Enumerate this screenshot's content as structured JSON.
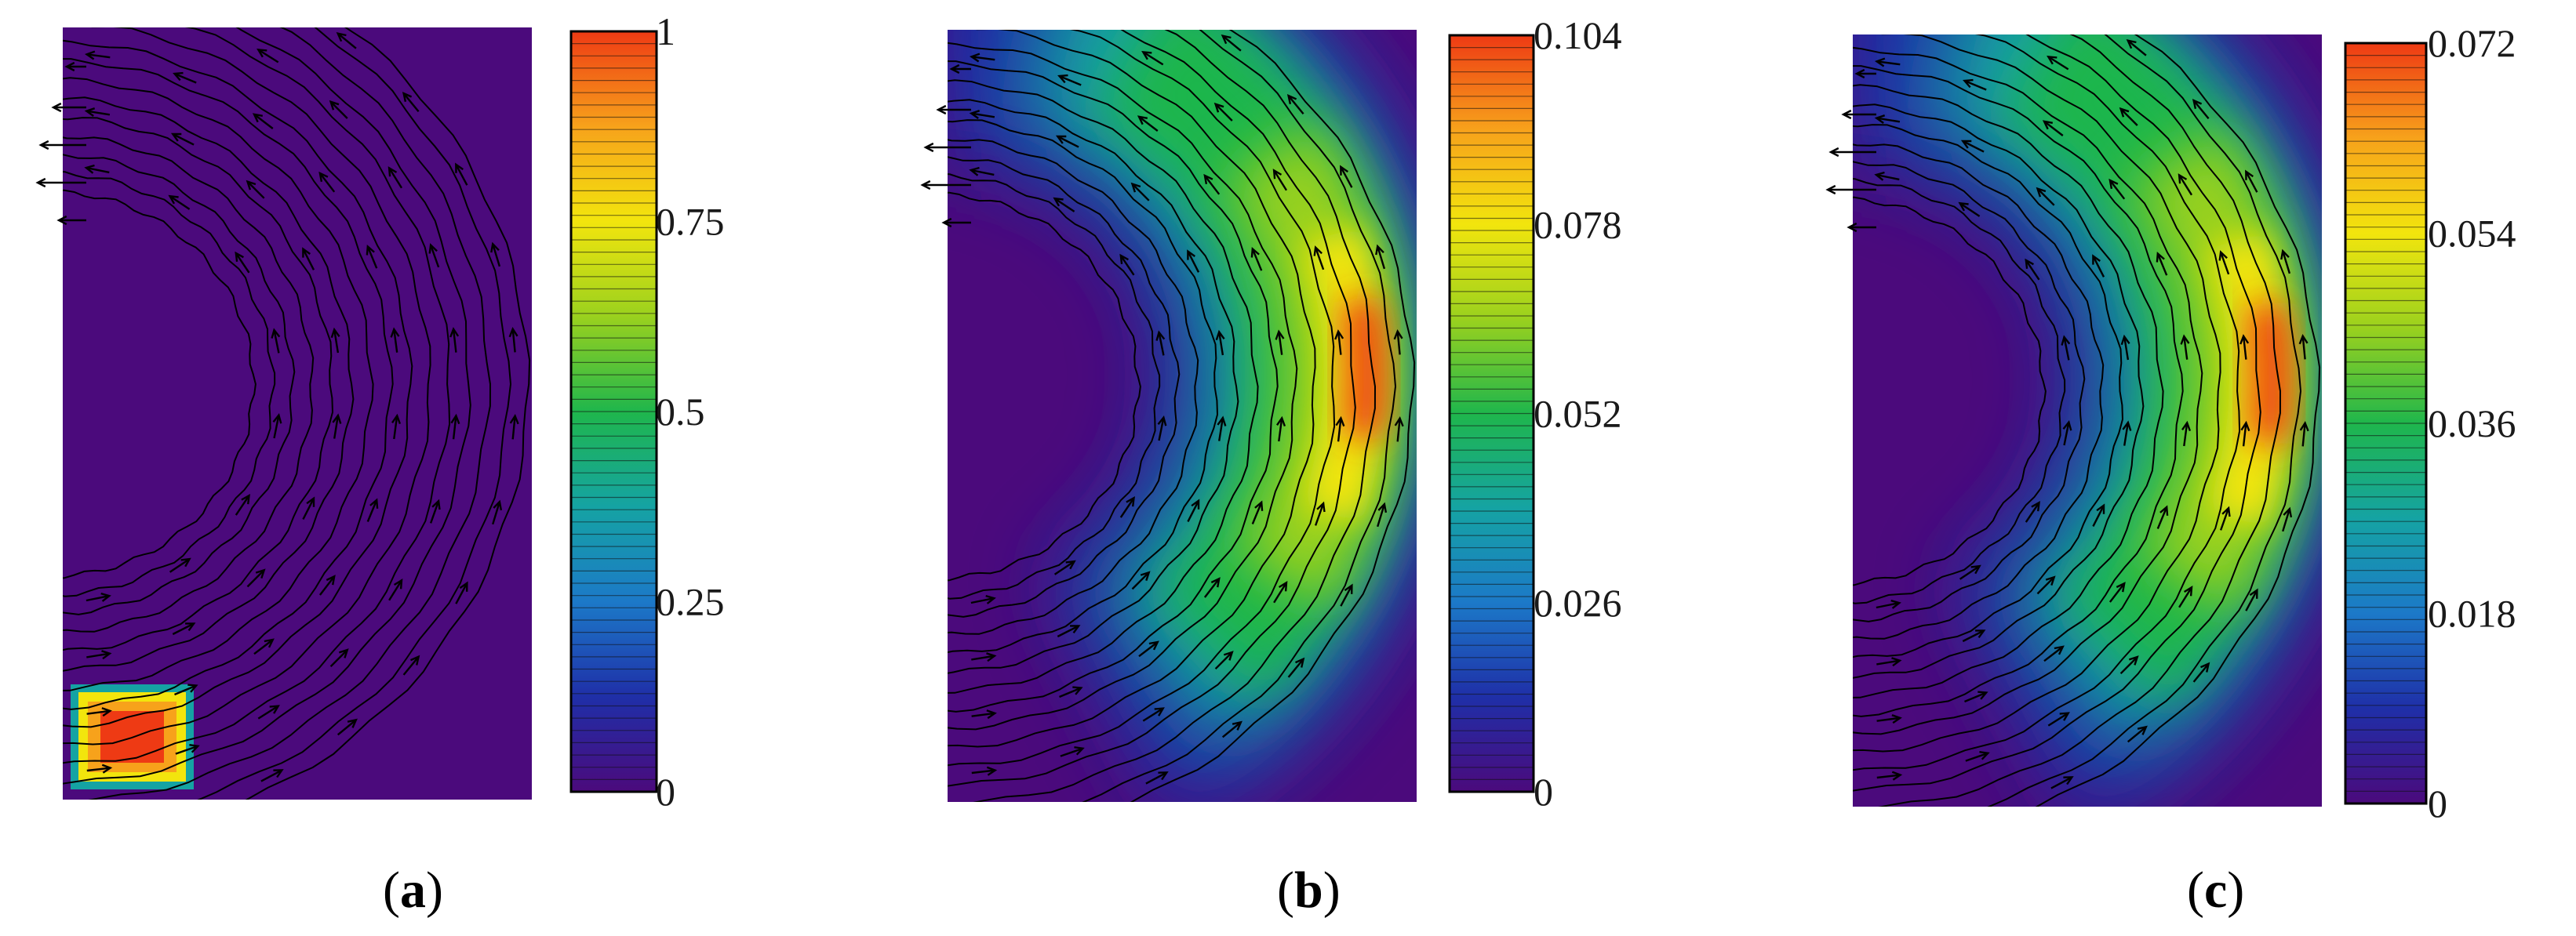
{
  "chart_data": [
    {
      "type": "heatmap",
      "panel_label": "a",
      "colorbar": {
        "min": 0,
        "max": 1,
        "ticks": [
          "0",
          "0.25",
          "0.5",
          "0.75",
          "1"
        ]
      },
      "field": {
        "kind": "block",
        "peak": 1
      }
    },
    {
      "type": "heatmap",
      "panel_label": "b",
      "colorbar": {
        "min": 0,
        "max": 0.104,
        "ticks": [
          "0",
          "0.026",
          "0.052",
          "0.078",
          "0.104"
        ]
      },
      "field": {
        "kind": "crescent",
        "peak": 0.104
      }
    },
    {
      "type": "heatmap",
      "panel_label": "c",
      "colorbar": {
        "min": 0,
        "max": 0.072,
        "ticks": [
          "0",
          "0.018",
          "0.036",
          "0.054",
          "0.072"
        ]
      },
      "field": {
        "kind": "crescent",
        "peak": 0.072
      }
    }
  ],
  "colormap": [
    "#4b0a7c",
    "#1f2fa8",
    "#1c79c8",
    "#15a3a3",
    "#1fb64c",
    "#9ad11e",
    "#f2e50d",
    "#f7a21b",
    "#ee3a14"
  ],
  "streamline_color": "#000000"
}
